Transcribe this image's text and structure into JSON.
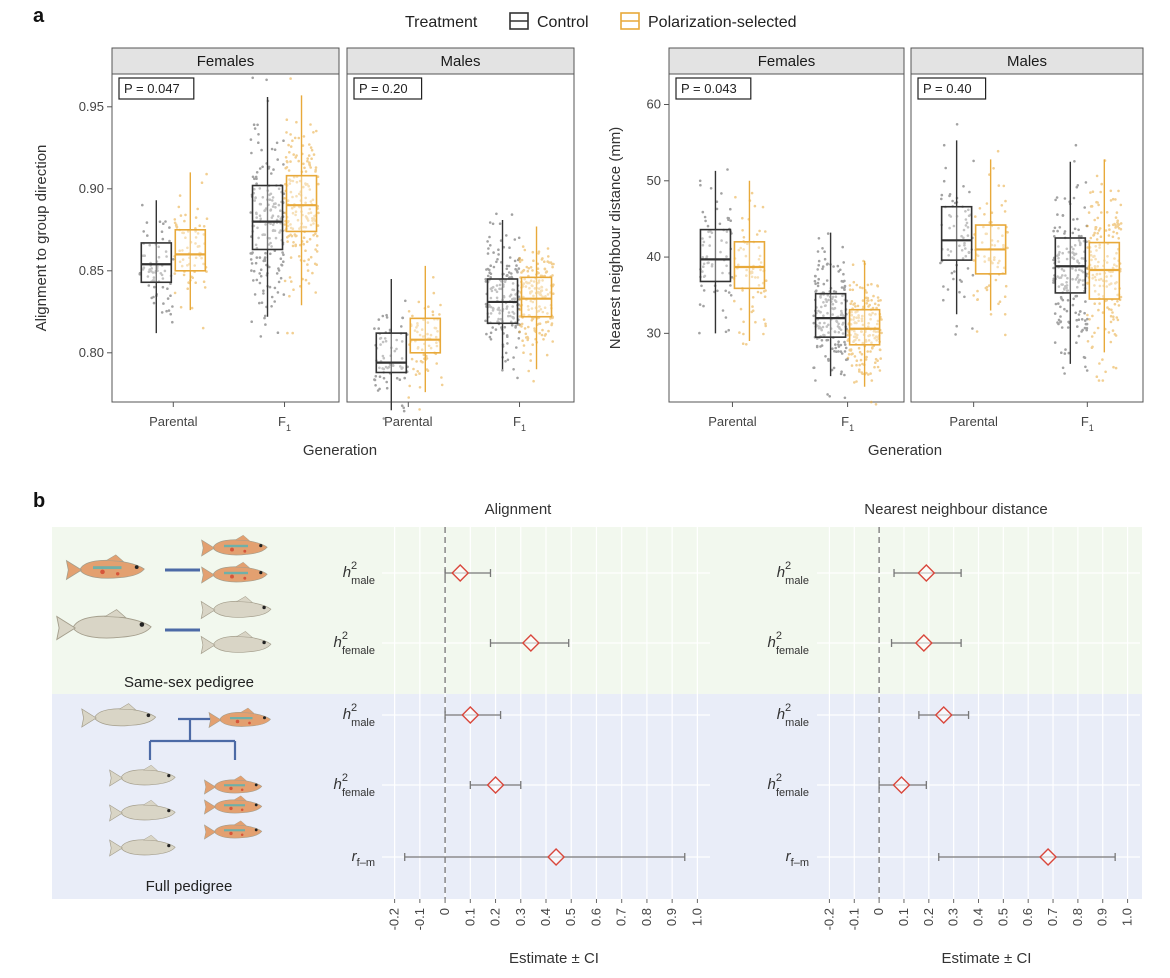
{
  "panel_a_letter": "a",
  "panel_b_letter": "b",
  "legend": {
    "title": "Treatment",
    "items": [
      {
        "label": "Control",
        "color": "#333333"
      },
      {
        "label": "Polarization-selected",
        "color": "#e8a93a"
      }
    ]
  },
  "fish_colors": {
    "female_body": "#d9d5c6",
    "male_body": "#e3a070",
    "male_stripe": "#6fb0a8",
    "male_spot": "#d6553a",
    "pedigree_line": "#4c6aa6"
  },
  "pedigree": {
    "same_sex_label": "Same-sex pedigree",
    "full_label": "Full pedigree",
    "same_sex_bg": "#f2f8ee",
    "full_bg": "#e9edf8"
  },
  "chart_data": [
    {
      "type": "box",
      "id": "alignment_boxes",
      "ylabel": "Alignment to group direction",
      "xlabel": "Generation",
      "ylim": [
        0.77,
        0.97
      ],
      "yticks": [
        0.8,
        0.85,
        0.9,
        0.95
      ],
      "categories": [
        "Parental",
        "F1"
      ],
      "category_labels": [
        {
          "text": "Parental",
          "sub": ""
        },
        {
          "text": "F",
          "sub": "1"
        }
      ],
      "facets": [
        {
          "title": "Females",
          "p_label": "P = 0.047",
          "groups": [
            {
              "generation": "Parental",
              "treatment": "Control",
              "min": 0.812,
              "q1": 0.843,
              "median": 0.854,
              "q3": 0.867,
              "max": 0.893
            },
            {
              "generation": "Parental",
              "treatment": "Polarization-selected",
              "min": 0.826,
              "q1": 0.85,
              "median": 0.86,
              "q3": 0.875,
              "max": 0.91
            },
            {
              "generation": "F1",
              "treatment": "Control",
              "min": 0.822,
              "q1": 0.863,
              "median": 0.88,
              "q3": 0.902,
              "max": 0.956
            },
            {
              "generation": "F1",
              "treatment": "Polarization-selected",
              "min": 0.829,
              "q1": 0.874,
              "median": 0.89,
              "q3": 0.908,
              "max": 0.957
            }
          ]
        },
        {
          "title": "Males",
          "p_label": "P = 0.20",
          "groups": [
            {
              "generation": "Parental",
              "treatment": "Control",
              "min": 0.765,
              "q1": 0.788,
              "median": 0.794,
              "q3": 0.812,
              "max": 0.845
            },
            {
              "generation": "Parental",
              "treatment": "Polarization-selected",
              "min": 0.776,
              "q1": 0.8,
              "median": 0.808,
              "q3": 0.821,
              "max": 0.853
            },
            {
              "generation": "F1",
              "treatment": "Control",
              "min": 0.79,
              "q1": 0.818,
              "median": 0.831,
              "q3": 0.845,
              "max": 0.881
            },
            {
              "generation": "F1",
              "treatment": "Polarization-selected",
              "min": 0.79,
              "q1": 0.822,
              "median": 0.833,
              "q3": 0.846,
              "max": 0.877
            }
          ]
        }
      ]
    },
    {
      "type": "box",
      "id": "nnd_boxes",
      "ylabel": "Nearest neighbour distance (mm)",
      "xlabel": "Generation",
      "ylim": [
        21,
        64
      ],
      "yticks": [
        30,
        40,
        50,
        60
      ],
      "categories": [
        "Parental",
        "F1"
      ],
      "category_labels": [
        {
          "text": "Parental",
          "sub": ""
        },
        {
          "text": "F",
          "sub": "1"
        }
      ],
      "facets": [
        {
          "title": "Females",
          "p_label": "P = 0.043",
          "groups": [
            {
              "generation": "Parental",
              "treatment": "Control",
              "min": 30.0,
              "q1": 36.8,
              "median": 39.7,
              "q3": 43.6,
              "max": 51.3
            },
            {
              "generation": "Parental",
              "treatment": "Polarization-selected",
              "min": 29.0,
              "q1": 35.9,
              "median": 38.7,
              "q3": 42.0,
              "max": 50.0
            },
            {
              "generation": "F1",
              "treatment": "Control",
              "min": 24.4,
              "q1": 29.5,
              "median": 32.0,
              "q3": 35.2,
              "max": 43.2
            },
            {
              "generation": "F1",
              "treatment": "Polarization-selected",
              "min": 23.0,
              "q1": 28.5,
              "median": 30.6,
              "q3": 33.1,
              "max": 39.5
            }
          ]
        },
        {
          "title": "Males",
          "p_label": "P = 0.40",
          "groups": [
            {
              "generation": "Parental",
              "treatment": "Control",
              "min": 32.5,
              "q1": 39.6,
              "median": 42.2,
              "q3": 46.6,
              "max": 55.3
            },
            {
              "generation": "Parental",
              "treatment": "Polarization-selected",
              "min": 33.0,
              "q1": 37.8,
              "median": 41.0,
              "q3": 44.2,
              "max": 52.8
            },
            {
              "generation": "F1",
              "treatment": "Control",
              "min": 26.0,
              "q1": 35.3,
              "median": 38.8,
              "q3": 42.5,
              "max": 52.5
            },
            {
              "generation": "F1",
              "treatment": "Polarization-selected",
              "min": 27.5,
              "q1": 34.5,
              "median": 38.3,
              "q3": 41.9,
              "max": 52.8
            }
          ]
        }
      ]
    },
    {
      "type": "forest",
      "id": "alignment_estimates",
      "title": "Alignment",
      "xlabel": "Estimate ± CI",
      "xlim": [
        -0.25,
        1.05
      ],
      "xticks": [
        -0.2,
        -0.1,
        0,
        0.1,
        0.2,
        0.3,
        0.4,
        0.5,
        0.6,
        0.7,
        0.8,
        0.9,
        1.0
      ],
      "xtick_labels": [
        "-0.2",
        "-0.1",
        "0",
        "0.1",
        "0.2",
        "0.3",
        "0.4",
        "0.5",
        "0.6",
        "0.7",
        "0.8",
        "0.9",
        "1.0"
      ],
      "rows": [
        {
          "pedigree": "Same-sex pedigree",
          "base": "h",
          "sup": "2",
          "sub": "male",
          "estimate": 0.06,
          "lower": 0.0,
          "upper": 0.18
        },
        {
          "pedigree": "Same-sex pedigree",
          "base": "h",
          "sup": "2",
          "sub": "female",
          "estimate": 0.34,
          "lower": 0.18,
          "upper": 0.49
        },
        {
          "pedigree": "Full pedigree",
          "base": "h",
          "sup": "2",
          "sub": "male",
          "estimate": 0.1,
          "lower": 0.0,
          "upper": 0.22
        },
        {
          "pedigree": "Full pedigree",
          "base": "h",
          "sup": "2",
          "sub": "female",
          "estimate": 0.2,
          "lower": 0.1,
          "upper": 0.3
        },
        {
          "pedigree": "Full pedigree",
          "base": "r",
          "sup": "",
          "sub": "f–m",
          "estimate": 0.44,
          "lower": -0.16,
          "upper": 0.95
        }
      ]
    },
    {
      "type": "forest",
      "id": "nnd_estimates",
      "title": "Nearest neighbour distance",
      "xlabel": "Estimate ± CI",
      "xlim": [
        -0.25,
        1.05
      ],
      "xticks": [
        -0.2,
        -0.1,
        0,
        0.1,
        0.2,
        0.3,
        0.4,
        0.5,
        0.6,
        0.7,
        0.8,
        0.9,
        1.0
      ],
      "xtick_labels": [
        "-0.2",
        "-0.1",
        "0",
        "0.1",
        "0.2",
        "0.3",
        "0.4",
        "0.5",
        "0.6",
        "0.7",
        "0.8",
        "0.9",
        "1.0"
      ],
      "rows": [
        {
          "pedigree": "Same-sex pedigree",
          "base": "h",
          "sup": "2",
          "sub": "male",
          "estimate": 0.19,
          "lower": 0.06,
          "upper": 0.33
        },
        {
          "pedigree": "Same-sex pedigree",
          "base": "h",
          "sup": "2",
          "sub": "female",
          "estimate": 0.18,
          "lower": 0.05,
          "upper": 0.33
        },
        {
          "pedigree": "Full pedigree",
          "base": "h",
          "sup": "2",
          "sub": "male",
          "estimate": 0.26,
          "lower": 0.16,
          "upper": 0.36
        },
        {
          "pedigree": "Full pedigree",
          "base": "h",
          "sup": "2",
          "sub": "female",
          "estimate": 0.09,
          "lower": 0.0,
          "upper": 0.19
        },
        {
          "pedigree": "Full pedigree",
          "base": "r",
          "sup": "",
          "sub": "f–m",
          "estimate": 0.68,
          "lower": 0.24,
          "upper": 0.95
        }
      ]
    }
  ]
}
